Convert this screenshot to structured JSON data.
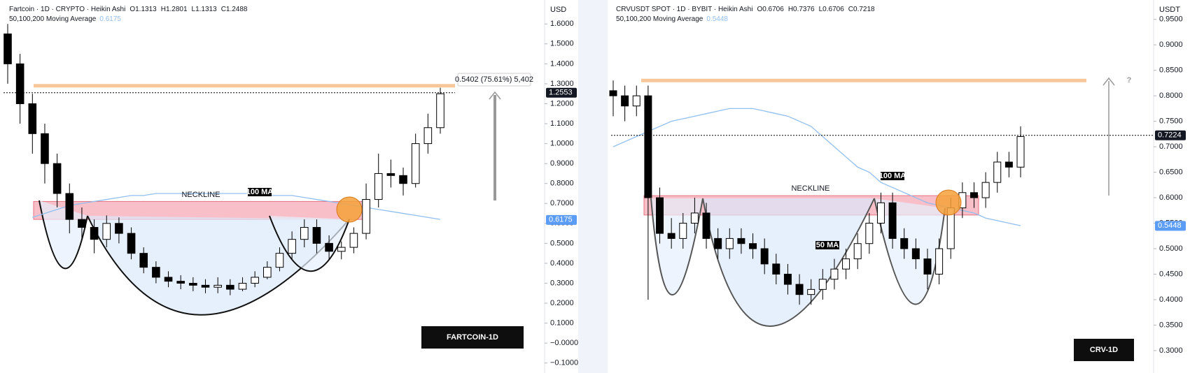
{
  "chart_data": [
    {
      "type": "candlestick",
      "title": "Fartcoin · 1D · CRYPTO · Heikin Ashi",
      "ohlc_labels": [
        "O1.1313",
        "H1.2801",
        "L1.1313",
        "C1.2488"
      ],
      "legend": "50,100,200 Moving Average",
      "currency": "USD",
      "ylim": [
        -0.15,
        1.72
      ],
      "yticks": [
        {
          "value": 1.6,
          "label": "1.6000"
        },
        {
          "value": 1.5,
          "label": "1.5000"
        },
        {
          "value": 1.4,
          "label": "1.4000"
        },
        {
          "value": 1.3,
          "label": "1.3000"
        },
        {
          "value": 1.2,
          "label": "1.2000"
        },
        {
          "value": 1.1,
          "label": "1.1000"
        },
        {
          "value": 1.0,
          "label": "1.0000"
        },
        {
          "value": 0.9,
          "label": "0.9000"
        },
        {
          "value": 0.8,
          "label": "0.8000"
        },
        {
          "value": 0.7,
          "label": "0.7000"
        },
        {
          "value": 0.6,
          "label": "0.6000"
        },
        {
          "value": 0.5,
          "label": "0.5000"
        },
        {
          "value": 0.4,
          "label": "0.4000"
        },
        {
          "value": 0.3,
          "label": "0.3000"
        },
        {
          "value": 0.2,
          "label": "0.2000"
        },
        {
          "value": 0.1,
          "label": "0.1000"
        },
        {
          "value": 0,
          "label": "−0.0000"
        },
        {
          "value": -0.1,
          "label": "−0.1000"
        }
      ],
      "open": [
        1.55,
        1.4,
        1.2,
        1.05,
        0.9,
        0.75,
        0.62,
        0.58,
        0.52,
        0.6,
        0.55,
        0.45,
        0.38,
        0.33,
        0.31,
        0.3,
        0.29,
        0.28,
        0.29,
        0.27,
        0.3,
        0.33,
        0.38,
        0.45,
        0.52,
        0.58,
        0.5,
        0.46,
        0.48,
        0.55,
        0.72,
        0.85,
        0.84,
        0.8,
        1.0,
        1.08
      ],
      "high": [
        1.6,
        1.45,
        1.25,
        1.1,
        0.95,
        0.8,
        0.68,
        0.62,
        0.64,
        0.63,
        0.58,
        0.48,
        0.41,
        0.36,
        0.34,
        0.33,
        0.32,
        0.33,
        0.32,
        0.33,
        0.36,
        0.41,
        0.48,
        0.56,
        0.62,
        0.62,
        0.54,
        0.51,
        0.58,
        0.8,
        0.95,
        0.92,
        0.88,
        1.05,
        1.15,
        1.28
      ],
      "low": [
        1.3,
        1.1,
        0.95,
        0.8,
        0.68,
        0.55,
        0.52,
        0.45,
        0.48,
        0.5,
        0.42,
        0.35,
        0.3,
        0.28,
        0.27,
        0.26,
        0.25,
        0.25,
        0.24,
        0.26,
        0.28,
        0.32,
        0.36,
        0.42,
        0.48,
        0.45,
        0.42,
        0.42,
        0.45,
        0.52,
        0.68,
        0.78,
        0.74,
        0.78,
        0.95,
        1.05
      ],
      "close": [
        1.4,
        1.2,
        1.05,
        0.9,
        0.75,
        0.62,
        0.58,
        0.52,
        0.6,
        0.55,
        0.45,
        0.38,
        0.33,
        0.31,
        0.3,
        0.29,
        0.28,
        0.29,
        0.27,
        0.3,
        0.33,
        0.38,
        0.45,
        0.52,
        0.58,
        0.5,
        0.46,
        0.48,
        0.55,
        0.72,
        0.85,
        0.84,
        0.8,
        1.0,
        1.08,
        1.25
      ],
      "up_color": "#ffffff",
      "down_color": "#000000",
      "ma": {
        "color": "#90bff0",
        "values": [
          null,
          null,
          0.63,
          0.65,
          0.67,
          0.69,
          0.7,
          0.71,
          0.72,
          0.73,
          0.74,
          0.74,
          0.75,
          0.75,
          0.75,
          0.75,
          0.75,
          0.75,
          0.75,
          0.75,
          0.75,
          0.74,
          0.74,
          0.74,
          0.73,
          0.72,
          0.71,
          0.7,
          0.69,
          0.68,
          0.67,
          0.66,
          0.65,
          0.64,
          0.63,
          0.62
        ]
      },
      "last_price": 1.2553,
      "ma_price": 0.6175,
      "target": 1.29,
      "zone": [
        0.62,
        0.71
      ],
      "annotations": {
        "neckline": "NECKLINE",
        "ma100": "100 MA",
        "name": "FARTCOIN-1D",
        "measure": "0.5402 (75.61%) 5,402"
      }
    },
    {
      "type": "candlestick",
      "title": "CRVUSDT SPOT · 1D · BYBIT · Heikin Ashi",
      "ohlc_labels": [
        "O0.6706",
        "H0.7376",
        "L0.6706",
        "C0.7218"
      ],
      "legend": "50,100,200 Moving Average",
      "currency": "USDT",
      "ylim": [
        0.256,
        0.988
      ],
      "yticks": [
        {
          "value": 0.95,
          "label": "0.9500"
        },
        {
          "value": 0.9,
          "label": "0.9000"
        },
        {
          "value": 0.85,
          "label": "0.8500"
        },
        {
          "value": 0.8,
          "label": "0.8000"
        },
        {
          "value": 0.75,
          "label": "0.7500"
        },
        {
          "value": 0.7,
          "label": "0.7000"
        },
        {
          "value": 0.65,
          "label": "0.6500"
        },
        {
          "value": 0.6,
          "label": "0.6000"
        },
        {
          "value": 0.55,
          "label": "0.5500"
        },
        {
          "value": 0.5,
          "label": "0.5000"
        },
        {
          "value": 0.45,
          "label": "0.4500"
        },
        {
          "value": 0.4,
          "label": "0.4000"
        },
        {
          "value": 0.35,
          "label": "0.3500"
        },
        {
          "value": 0.3,
          "label": "0.3000"
        }
      ],
      "open": [
        0.81,
        0.8,
        0.78,
        0.8,
        0.6,
        0.53,
        0.52,
        0.55,
        0.57,
        0.52,
        0.5,
        0.52,
        0.51,
        0.5,
        0.47,
        0.45,
        0.43,
        0.41,
        0.42,
        0.44,
        0.46,
        0.48,
        0.51,
        0.55,
        0.59,
        0.52,
        0.5,
        0.48,
        0.45,
        0.5,
        0.58,
        0.61,
        0.6,
        0.63,
        0.67,
        0.66
      ],
      "high": [
        0.83,
        0.82,
        0.82,
        0.82,
        0.62,
        0.56,
        0.57,
        0.6,
        0.59,
        0.54,
        0.54,
        0.54,
        0.53,
        0.52,
        0.49,
        0.47,
        0.45,
        0.44,
        0.46,
        0.48,
        0.5,
        0.53,
        0.57,
        0.61,
        0.61,
        0.54,
        0.52,
        0.5,
        0.52,
        0.6,
        0.63,
        0.63,
        0.65,
        0.69,
        0.69,
        0.74
      ],
      "low": [
        0.76,
        0.75,
        0.76,
        0.4,
        0.51,
        0.5,
        0.5,
        0.53,
        0.5,
        0.48,
        0.48,
        0.49,
        0.48,
        0.45,
        0.43,
        0.41,
        0.39,
        0.39,
        0.4,
        0.42,
        0.44,
        0.46,
        0.49,
        0.53,
        0.5,
        0.48,
        0.46,
        0.42,
        0.43,
        0.48,
        0.56,
        0.58,
        0.58,
        0.61,
        0.64,
        0.64
      ],
      "close": [
        0.8,
        0.78,
        0.8,
        0.6,
        0.53,
        0.52,
        0.55,
        0.57,
        0.52,
        0.5,
        0.52,
        0.51,
        0.5,
        0.47,
        0.45,
        0.43,
        0.41,
        0.42,
        0.44,
        0.46,
        0.48,
        0.51,
        0.55,
        0.59,
        0.52,
        0.5,
        0.48,
        0.45,
        0.5,
        0.58,
        0.61,
        0.6,
        0.63,
        0.67,
        0.66,
        0.72
      ],
      "up_color": "#ffffff",
      "down_color": "#000000",
      "ma": {
        "color": "#90bff0",
        "values": [
          0.7,
          0.71,
          0.72,
          0.73,
          0.74,
          0.75,
          0.755,
          0.76,
          0.765,
          0.77,
          0.775,
          0.775,
          0.775,
          0.77,
          0.765,
          0.76,
          0.75,
          0.74,
          0.72,
          0.7,
          0.68,
          0.66,
          0.65,
          0.63,
          0.62,
          0.61,
          0.6,
          0.59,
          0.585,
          0.58,
          0.575,
          0.57,
          0.56,
          0.555,
          0.55,
          0.545
        ]
      },
      "last_price": 0.7224,
      "ma_price": 0.5448,
      "target": 0.83,
      "zone": [
        0.566,
        0.604
      ],
      "annotations": {
        "neckline": "NECKLINE",
        "ma100": "100 MA",
        "ma50": "50 MA",
        "name": "CRV-1D",
        "question": "?"
      }
    }
  ]
}
